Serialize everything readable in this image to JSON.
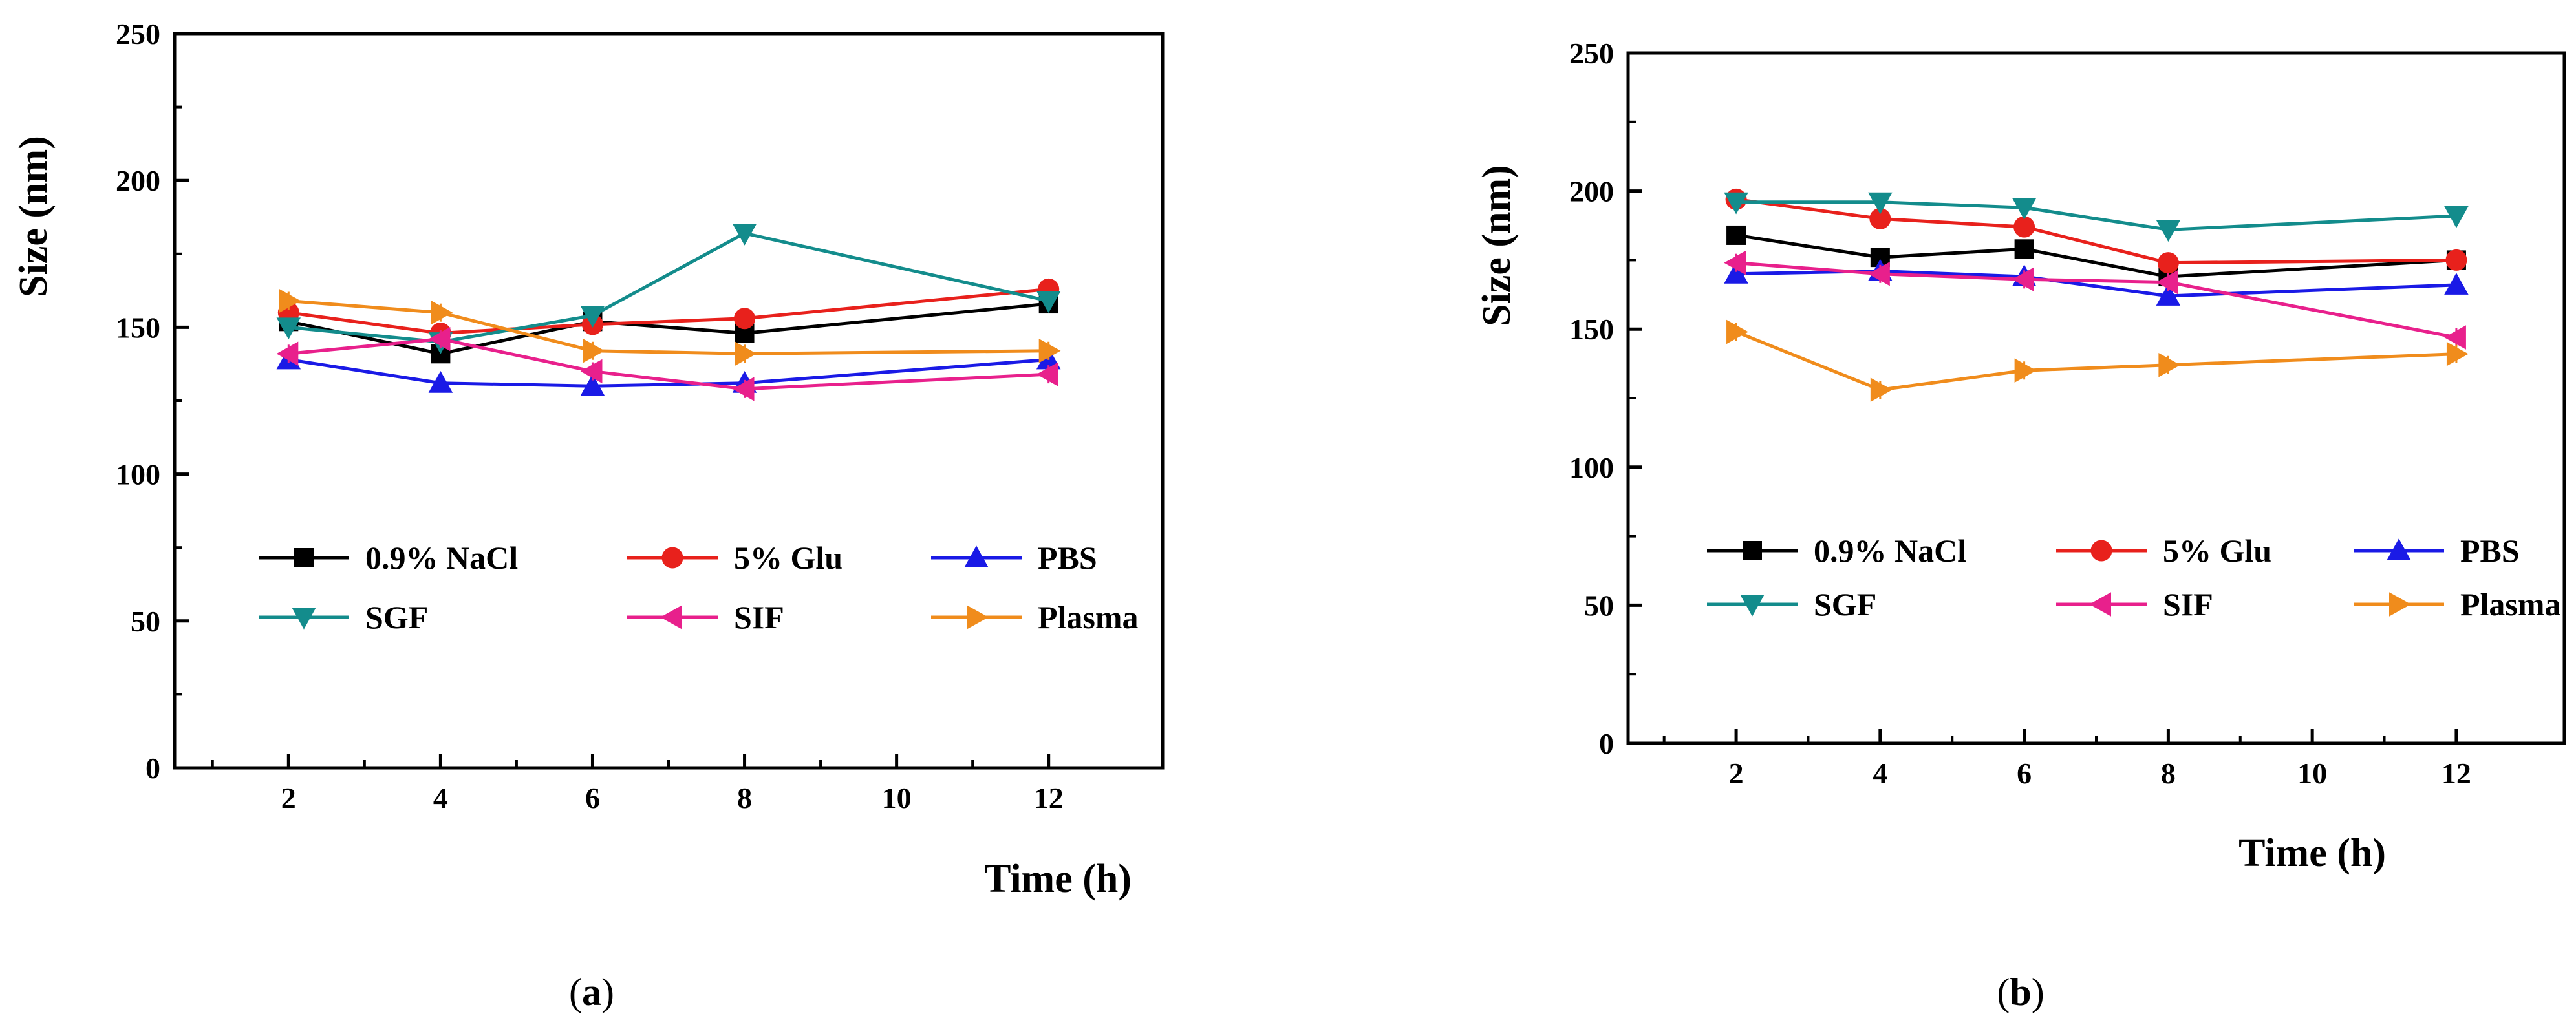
{
  "chart_data": [
    {
      "type": "line",
      "panel_label": "(a)",
      "panel_letter": "a",
      "title": "",
      "xlabel": "Time (h)",
      "ylabel": "Size (nm)",
      "xlim": [
        0.5,
        13.5
      ],
      "ylim": [
        0,
        250
      ],
      "x": [
        2,
        4,
        6,
        8,
        10,
        12
      ],
      "xticks": [
        2,
        4,
        6,
        8,
        10,
        12
      ],
      "yticks": [
        0,
        50,
        100,
        150,
        200,
        250
      ],
      "legend_position": "lower-center",
      "series": [
        {
          "name": "0.9% NaCl",
          "color": "#000000",
          "marker": "square",
          "x": [
            2,
            4,
            6,
            8,
            12
          ],
          "values": [
            152,
            141,
            152,
            148,
            158
          ]
        },
        {
          "name": "5% Glu",
          "color": "#e8211c",
          "marker": "circle",
          "x": [
            2,
            4,
            6,
            8,
            12
          ],
          "values": [
            155,
            148,
            151,
            153,
            163
          ]
        },
        {
          "name": "PBS",
          "color": "#1a1ae6",
          "marker": "triangle-up",
          "x": [
            2,
            4,
            6,
            8,
            12
          ],
          "values": [
            139,
            131,
            130,
            131,
            139
          ]
        },
        {
          "name": "SGF",
          "color": "#138c8c",
          "marker": "triangle-down",
          "x": [
            2,
            4,
            6,
            8,
            12
          ],
          "values": [
            150,
            145,
            154,
            182,
            159
          ]
        },
        {
          "name": "SIF",
          "color": "#e8208c",
          "marker": "triangle-left",
          "x": [
            2,
            4,
            6,
            8,
            12
          ],
          "values": [
            141,
            146,
            135,
            129,
            134
          ]
        },
        {
          "name": "Plasma",
          "color": "#f08c1c",
          "marker": "triangle-right",
          "x": [
            2,
            4,
            6,
            8,
            12
          ],
          "values": [
            159,
            155,
            142,
            141,
            142
          ]
        }
      ]
    },
    {
      "type": "line",
      "panel_label": "(b)",
      "panel_letter": "b",
      "title": "",
      "xlabel": "Time (h)",
      "ylabel": "Size (nm)",
      "xlim": [
        0.5,
        13.5
      ],
      "ylim": [
        0,
        250
      ],
      "x": [
        2,
        4,
        6,
        8,
        10,
        12
      ],
      "xticks": [
        2,
        4,
        6,
        8,
        10,
        12
      ],
      "yticks": [
        0,
        50,
        100,
        150,
        200,
        250
      ],
      "legend_position": "lower-center",
      "series": [
        {
          "name": "0.9% NaCl",
          "color": "#000000",
          "marker": "square",
          "x": [
            2,
            4,
            6,
            8,
            12
          ],
          "values": [
            184,
            176,
            179,
            169,
            175
          ]
        },
        {
          "name": "5% Glu",
          "color": "#e8211c",
          "marker": "circle",
          "x": [
            2,
            4,
            6,
            8,
            12
          ],
          "values": [
            197,
            190,
            187,
            174,
            175
          ]
        },
        {
          "name": "PBS",
          "color": "#1a1ae6",
          "marker": "triangle-up",
          "x": [
            2,
            4,
            6,
            8,
            12
          ],
          "values": [
            170,
            171,
            169,
            162,
            166
          ]
        },
        {
          "name": "SGF",
          "color": "#138c8c",
          "marker": "triangle-down",
          "x": [
            2,
            4,
            6,
            8,
            12
          ],
          "values": [
            196,
            196,
            194,
            186,
            191
          ]
        },
        {
          "name": "SIF",
          "color": "#e8208c",
          "marker": "triangle-left",
          "x": [
            2,
            4,
            6,
            8,
            12
          ],
          "values": [
            174,
            170,
            168,
            167,
            147
          ]
        },
        {
          "name": "Plasma",
          "color": "#f08c1c",
          "marker": "triangle-right",
          "x": [
            2,
            4,
            6,
            8,
            12
          ],
          "values": [
            149,
            128,
            135,
            137,
            141
          ]
        }
      ]
    }
  ]
}
